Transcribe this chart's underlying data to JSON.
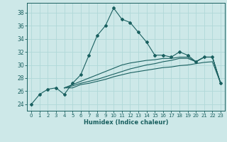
{
  "xlabel": "Humidex (Indice chaleur)",
  "xlim": [
    -0.5,
    23.5
  ],
  "ylim": [
    23,
    39.5
  ],
  "yticks": [
    24,
    26,
    28,
    30,
    32,
    34,
    36,
    38
  ],
  "xticks": [
    0,
    1,
    2,
    3,
    4,
    5,
    6,
    7,
    8,
    9,
    10,
    11,
    12,
    13,
    14,
    15,
    16,
    17,
    18,
    19,
    20,
    21,
    22,
    23
  ],
  "bg_color": "#cde8e8",
  "grid_color": "#b0d8d8",
  "line_color": "#1a6060",
  "series_main": [
    24,
    25.5,
    26.3,
    26.5,
    25.5,
    27.2,
    28.5,
    31.5,
    34.5,
    36.0,
    38.7,
    37.0,
    36.5,
    35.0,
    33.5,
    31.5,
    31.5,
    31.2,
    32.0,
    31.5,
    30.5,
    31.2,
    31.2,
    27.2
  ],
  "series_b1": [
    null,
    null,
    null,
    null,
    26.5,
    26.5,
    27.0,
    27.2,
    27.5,
    27.8,
    28.2,
    28.5,
    28.8,
    29.0,
    29.2,
    29.4,
    29.6,
    29.7,
    29.9,
    30.0,
    30.2,
    30.4,
    30.5,
    27.2
  ],
  "series_b2": [
    null,
    null,
    null,
    null,
    26.5,
    26.8,
    27.2,
    27.5,
    27.8,
    28.2,
    28.6,
    29.0,
    29.4,
    29.7,
    30.0,
    30.2,
    30.5,
    30.7,
    31.0,
    31.0,
    30.5,
    31.2,
    31.2,
    27.2
  ],
  "series_b3": [
    null,
    null,
    null,
    null,
    26.5,
    27.0,
    27.5,
    28.0,
    28.5,
    29.0,
    29.5,
    30.0,
    30.3,
    30.5,
    30.7,
    30.8,
    31.0,
    31.0,
    31.2,
    31.2,
    30.5,
    31.2,
    31.2,
    27.2
  ]
}
